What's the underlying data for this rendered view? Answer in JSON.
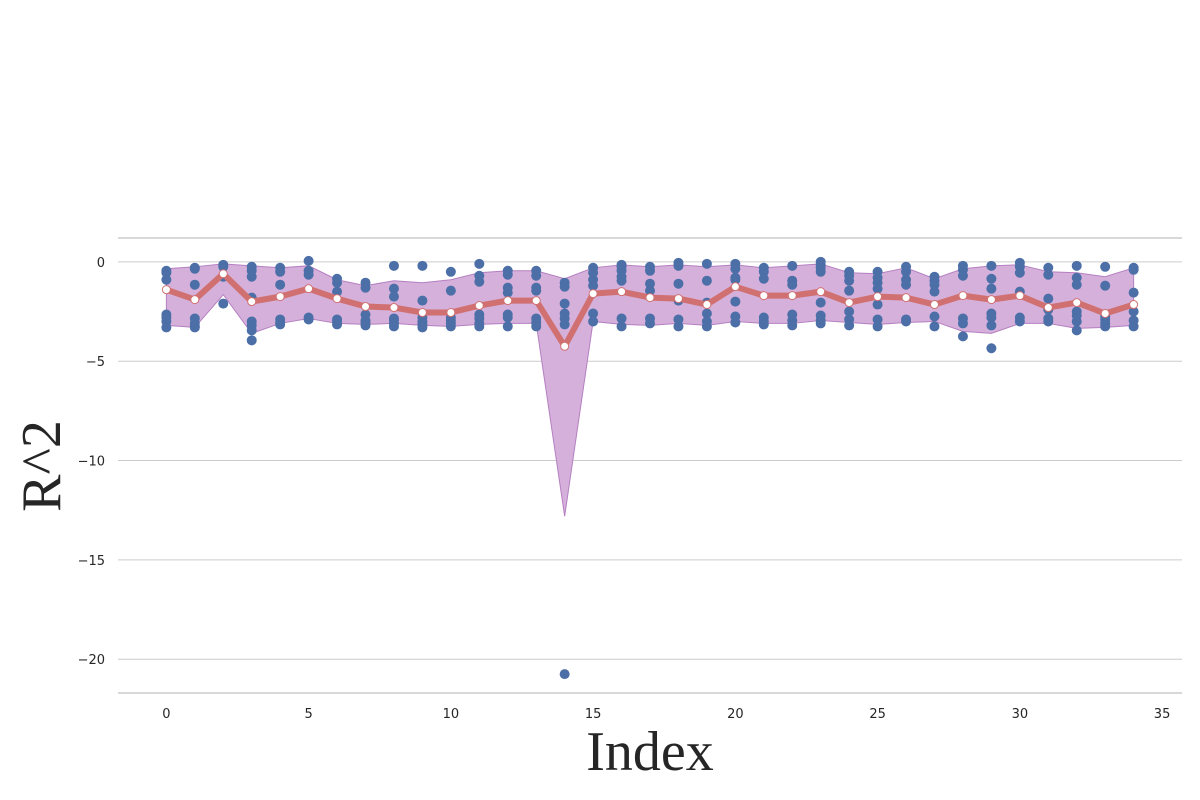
{
  "chart_data": {
    "type": "line",
    "title": "",
    "xlabel": "Index",
    "ylabel": "R^2",
    "xlim": [
      -1.7,
      35.7
    ],
    "ylim": [
      -21.7,
      1.2
    ],
    "grid": "horizontal",
    "legend": "none",
    "x_ticks": [
      0,
      5,
      10,
      15,
      20,
      25,
      30,
      35
    ],
    "y_ticks": [
      0,
      -5,
      -10,
      -15,
      -20
    ],
    "x_tick_labels": [
      "0",
      "5",
      "10",
      "15",
      "20",
      "25",
      "30",
      "35"
    ],
    "y_tick_labels": [
      "0",
      "−5",
      "−10",
      "−15",
      "−20"
    ],
    "colors": {
      "band_fill": "#d5b0db",
      "band_edge": "#b57fc1",
      "mean_line": "#d07070",
      "points": "#4c6fa7",
      "mean_marker": "#ffffff"
    },
    "series": [
      {
        "role": "mean",
        "x": [
          0,
          1,
          2,
          3,
          4,
          5,
          6,
          7,
          8,
          9,
          10,
          11,
          12,
          13,
          14,
          15,
          16,
          17,
          18,
          19,
          20,
          21,
          22,
          23,
          24,
          25,
          26,
          27,
          28,
          29,
          30,
          31,
          32,
          33,
          34
        ],
        "values": [
          -1.4,
          -1.9,
          -0.6,
          -2.0,
          -1.75,
          -1.35,
          -1.85,
          -2.25,
          -2.3,
          -2.55,
          -2.55,
          -2.2,
          -1.95,
          -1.95,
          -4.25,
          -1.6,
          -1.5,
          -1.8,
          -1.85,
          -2.15,
          -1.25,
          -1.7,
          -1.7,
          -1.5,
          -2.05,
          -1.75,
          -1.8,
          -2.15,
          -1.7,
          -1.9,
          -1.7,
          -2.3,
          -2.05,
          -2.6,
          -2.15
        ]
      },
      {
        "role": "band_upper",
        "x": [
          0,
          1,
          2,
          3,
          4,
          5,
          6,
          7,
          8,
          9,
          10,
          11,
          12,
          13,
          14,
          15,
          16,
          17,
          18,
          19,
          20,
          21,
          22,
          23,
          24,
          25,
          26,
          27,
          28,
          29,
          30,
          31,
          32,
          33,
          34
        ],
        "values": [
          -0.35,
          -0.25,
          -0.1,
          -0.2,
          -0.3,
          -0.2,
          -0.9,
          -1.2,
          -0.95,
          -1.05,
          -0.9,
          -0.55,
          -0.45,
          -0.45,
          -0.85,
          -0.3,
          -0.15,
          -0.25,
          -0.15,
          -0.25,
          -0.15,
          -0.3,
          -0.2,
          -0.1,
          -0.55,
          -0.6,
          -0.3,
          -0.85,
          -0.35,
          -0.2,
          -0.15,
          -0.5,
          -0.55,
          -0.75,
          -0.3
        ]
      },
      {
        "role": "band_lower",
        "x": [
          0,
          1,
          2,
          3,
          4,
          5,
          6,
          7,
          8,
          9,
          10,
          11,
          12,
          13,
          14,
          15,
          16,
          17,
          18,
          19,
          20,
          21,
          22,
          23,
          24,
          25,
          26,
          27,
          28,
          29,
          30,
          31,
          32,
          33,
          34
        ],
        "values": [
          -3.2,
          -3.3,
          -1.65,
          -3.6,
          -3.1,
          -2.85,
          -3.1,
          -3.15,
          -3.1,
          -3.2,
          -3.25,
          -3.15,
          -3.1,
          -3.1,
          -12.8,
          -3.0,
          -3.15,
          -3.2,
          -3.1,
          -3.2,
          -3.0,
          -3.1,
          -3.1,
          -2.95,
          -3.05,
          -3.15,
          -3.05,
          -3.0,
          -3.5,
          -3.6,
          -3.1,
          -3.1,
          -3.35,
          -3.3,
          -3.2
        ]
      },
      {
        "role": "points",
        "x": [
          0,
          0,
          0,
          0,
          0,
          0,
          0,
          1,
          1,
          1,
          1,
          1,
          1,
          1,
          2,
          2,
          2,
          2,
          3,
          3,
          3,
          3,
          3,
          3,
          3,
          3,
          4,
          4,
          4,
          4,
          4,
          4,
          5,
          5,
          5,
          5,
          5,
          6,
          6,
          6,
          6,
          6,
          6,
          7,
          7,
          7,
          7,
          7,
          7,
          8,
          8,
          8,
          8,
          8,
          8,
          8,
          9,
          9,
          9,
          9,
          9,
          9,
          10,
          10,
          10,
          10,
          10,
          10,
          11,
          11,
          11,
          11,
          11,
          11,
          11,
          12,
          12,
          12,
          12,
          12,
          12,
          12,
          13,
          13,
          13,
          13,
          13,
          13,
          13,
          14,
          14,
          14,
          14,
          14,
          14,
          14,
          15,
          15,
          15,
          15,
          15,
          15,
          16,
          16,
          16,
          16,
          16,
          16,
          16,
          17,
          17,
          17,
          17,
          17,
          17,
          18,
          18,
          18,
          18,
          18,
          18,
          19,
          19,
          19,
          19,
          19,
          19,
          20,
          20,
          20,
          20,
          20,
          20,
          20,
          21,
          21,
          21,
          21,
          21,
          21,
          22,
          22,
          22,
          22,
          22,
          22,
          23,
          23,
          23,
          23,
          23,
          23,
          23,
          23,
          24,
          24,
          24,
          24,
          24,
          24,
          24,
          25,
          25,
          25,
          25,
          25,
          25,
          25,
          26,
          26,
          26,
          26,
          26,
          26,
          27,
          27,
          27,
          27,
          27,
          27,
          28,
          28,
          28,
          28,
          28,
          28,
          29,
          29,
          29,
          29,
          29,
          29,
          29,
          30,
          30,
          30,
          30,
          30,
          30,
          31,
          31,
          31,
          31,
          31,
          31,
          32,
          32,
          32,
          32,
          32,
          32,
          32,
          33,
          33,
          33,
          33,
          33,
          33,
          34,
          34,
          34,
          34,
          34,
          34
        ],
        "values": [
          -0.45,
          -0.55,
          -0.9,
          -2.65,
          -2.8,
          -3.0,
          -3.3,
          -0.3,
          -0.35,
          -1.15,
          -2.85,
          -3.1,
          -3.25,
          -3.3,
          -0.15,
          -0.25,
          -0.75,
          -2.1,
          -0.25,
          -0.45,
          -0.75,
          -1.8,
          -3.0,
          -3.2,
          -3.45,
          -3.95,
          -0.3,
          -0.5,
          -1.15,
          -2.9,
          -3.05,
          -3.15,
          0.05,
          -0.45,
          -0.65,
          -2.8,
          -2.9,
          -0.85,
          -1.05,
          -1.5,
          -2.9,
          -3.0,
          -3.15,
          -1.05,
          -1.3,
          -2.65,
          -2.95,
          -3.05,
          -3.2,
          -0.2,
          -1.35,
          -1.75,
          -2.85,
          -2.95,
          -3.1,
          -3.25,
          -0.2,
          -1.95,
          -2.8,
          -3.0,
          -3.15,
          -3.3,
          -0.5,
          -1.45,
          -2.8,
          -2.95,
          -3.1,
          -3.25,
          -0.1,
          -0.7,
          -1.0,
          -2.65,
          -2.85,
          -3.1,
          -3.25,
          -0.45,
          -0.65,
          -1.3,
          -1.55,
          -2.65,
          -2.8,
          -3.25,
          -0.45,
          -0.7,
          -1.3,
          -1.45,
          -2.85,
          -3.05,
          -3.25,
          -1.05,
          -1.25,
          -2.1,
          -2.6,
          -2.85,
          -3.15,
          -20.75,
          -0.3,
          -0.55,
          -0.9,
          -1.2,
          -2.6,
          -3.0,
          -0.15,
          -0.25,
          -0.45,
          -0.75,
          -0.95,
          -2.85,
          -3.25,
          -0.25,
          -0.45,
          -1.1,
          -1.45,
          -2.85,
          -3.1,
          -0.05,
          -0.2,
          -1.1,
          -1.95,
          -2.9,
          -3.25,
          -0.1,
          -0.95,
          -2.05,
          -2.6,
          -3.0,
          -3.25,
          -0.1,
          -0.35,
          -0.8,
          -0.9,
          -2.0,
          -2.75,
          -3.05,
          -0.3,
          -0.5,
          -0.85,
          -2.8,
          -3.0,
          -3.15,
          -0.2,
          -0.95,
          -1.15,
          -2.65,
          -2.95,
          -3.2,
          0.0,
          -0.15,
          -0.3,
          -0.5,
          -2.05,
          -2.7,
          -2.95,
          -3.1,
          -0.5,
          -0.7,
          -0.95,
          -1.45,
          -2.5,
          -2.9,
          -3.2,
          -0.5,
          -0.8,
          -1.05,
          -1.35,
          -2.15,
          -2.9,
          -3.25,
          -0.25,
          -0.5,
          -0.9,
          -1.15,
          -2.9,
          -3.0,
          -0.75,
          -0.95,
          -1.15,
          -1.5,
          -2.75,
          -3.25,
          -0.2,
          -0.4,
          -0.7,
          -2.85,
          -3.1,
          -3.75,
          -0.2,
          -0.85,
          -1.35,
          -2.6,
          -2.8,
          -3.2,
          -4.35,
          -0.05,
          -0.25,
          -0.55,
          -1.5,
          -2.8,
          -3.0,
          -0.3,
          -0.65,
          -1.85,
          -2.4,
          -2.85,
          -3.0,
          -0.2,
          -0.8,
          -1.15,
          -2.5,
          -2.7,
          -3.0,
          -3.45,
          -0.25,
          -1.2,
          -2.75,
          -2.9,
          -3.1,
          -3.25,
          -0.3,
          -0.4,
          -1.55,
          -2.5,
          -2.95,
          -3.25
        ]
      }
    ]
  }
}
